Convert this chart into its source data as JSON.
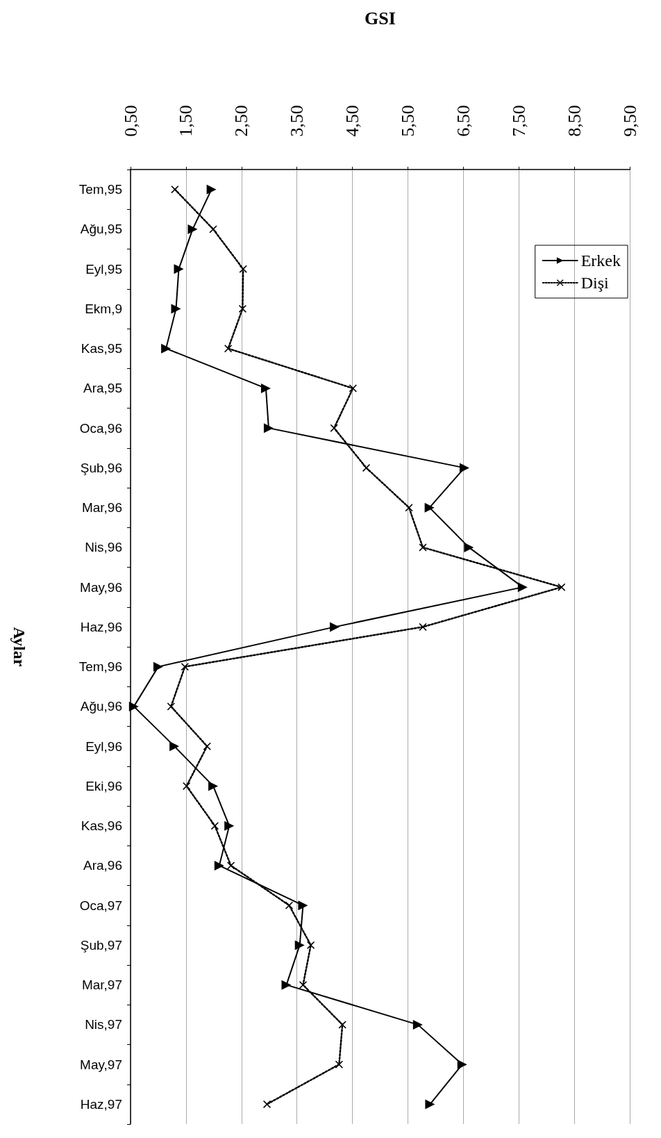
{
  "chart_data": {
    "type": "line",
    "orientation": "horizontal",
    "xlabel": "GSI",
    "ylabel": "Aylar",
    "categories": [
      "Tem,95",
      "Ağu,95",
      "Eyl,95",
      "Ekm,9",
      "Kas,95",
      "Ara,95",
      "Oca,96",
      "Şub,96",
      "Mar,96",
      "Nis,96",
      "May,96",
      "Haz,96",
      "Tem,96",
      "Ağu,96",
      "Eyl,96",
      "Eki,96",
      "Kas,96",
      "Ara,96",
      "Oca,97",
      "Şub,97",
      "Mar,97",
      "Nis,97",
      "May,97",
      "Haz,97"
    ],
    "series": [
      {
        "name": "Erkek",
        "color": "#000000",
        "marker": "triangle",
        "line_style": "solid",
        "values": [
          1.96,
          1.62,
          1.37,
          1.32,
          1.14,
          2.94,
          2.99,
          6.52,
          5.89,
          6.6,
          7.57,
          4.18,
          1.0,
          0.56,
          1.29,
          1.99,
          2.28,
          2.1,
          3.61,
          3.55,
          3.31,
          5.68,
          6.48,
          5.9
        ]
      },
      {
        "name": "Dişi",
        "color": "#000000",
        "marker": "cross",
        "line_style": "dotted",
        "values": [
          1.3,
          1.99,
          2.53,
          2.52,
          2.26,
          4.51,
          4.17,
          4.75,
          5.52,
          5.77,
          8.27,
          5.77,
          1.48,
          1.23,
          1.88,
          1.51,
          2.02,
          2.31,
          3.36,
          3.75,
          3.61,
          4.32,
          4.26,
          2.96
        ]
      }
    ],
    "xlim": [
      0.5,
      9.5
    ],
    "xticks": [
      {
        "value": 0.5,
        "label": "0,50"
      },
      {
        "value": 1.5,
        "label": "1,50"
      },
      {
        "value": 2.5,
        "label": "2,50"
      },
      {
        "value": 3.5,
        "label": "3,50"
      },
      {
        "value": 4.5,
        "label": "4,50"
      },
      {
        "value": 5.5,
        "label": "5,50"
      },
      {
        "value": 6.5,
        "label": "6,50"
      },
      {
        "value": 7.5,
        "label": "7,50"
      },
      {
        "value": 8.5,
        "label": "8,50"
      },
      {
        "value": 9.5,
        "label": "9,50"
      }
    ],
    "grid": "x",
    "legend": "top right"
  }
}
